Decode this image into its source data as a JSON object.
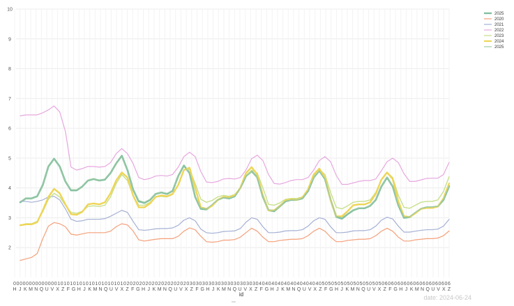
{
  "chart_data": {
    "type": "line",
    "xlabel": "id",
    "ylim": [
      1,
      10
    ],
    "y_ticks": [
      2,
      3,
      4,
      5,
      6,
      7,
      8,
      9,
      10
    ],
    "grid": true,
    "legend_position": "top-right",
    "x_tick_top": [
      "0",
      "0",
      "0",
      "0",
      "0",
      "0",
      "0",
      "0",
      "0",
      "0",
      "0",
      "0",
      "0",
      "0",
      "1",
      "0",
      "1",
      "0",
      "1",
      "0",
      "1",
      "0",
      "1",
      "0",
      "1",
      "0",
      "1",
      "0",
      "1",
      "0",
      "1",
      "0",
      "1",
      "0",
      "1",
      "0",
      "2",
      "0",
      "2",
      "0",
      "2",
      "0",
      "2",
      "0",
      "2",
      "0",
      "2",
      "0",
      "2",
      "0",
      "2",
      "0",
      "2",
      "0",
      "2",
      "0",
      "3",
      "0",
      "3",
      "0",
      "3",
      "0",
      "3",
      "0",
      "3",
      "0",
      "3",
      "0",
      "3",
      "0",
      "3",
      "0",
      "3",
      "0",
      "3",
      "0",
      "3",
      "0",
      "4",
      "0",
      "4",
      "0",
      "4",
      "0",
      "4",
      "0",
      "4",
      "0",
      "4",
      "0",
      "4",
      "0",
      "4",
      "0",
      "4",
      "0",
      "4",
      "0",
      "5",
      "0",
      "5",
      "0",
      "5",
      "0",
      "5",
      "0",
      "5",
      "0",
      "5",
      "0",
      "5",
      "0",
      "5",
      "0",
      "5",
      "0",
      "5",
      "0",
      "6",
      "0",
      "6",
      "0",
      "6",
      "0",
      "6",
      "0",
      "6",
      "0",
      "6",
      "0",
      "6",
      "0",
      "6",
      "0",
      "6",
      "0",
      "6",
      "0",
      "6"
    ],
    "x_tick_bottom": [
      "H",
      "J",
      "K",
      "M",
      "N",
      "Q",
      "U",
      "V",
      "X",
      "Z",
      "F",
      "G",
      "H",
      "J",
      "K",
      "M",
      "N",
      "Q",
      "U",
      "V",
      "X",
      "Z",
      "F",
      "G",
      "H",
      "J",
      "K",
      "M",
      "N",
      "Q",
      "U",
      "V",
      "X",
      "Z",
      "F",
      "G",
      "H",
      "J",
      "K",
      "M",
      "N",
      "Q",
      "U",
      "V",
      "X",
      "Z",
      "F",
      "G",
      "H",
      "J",
      "K",
      "M",
      "N",
      "Q",
      "U",
      "V",
      "X",
      "Z",
      "F",
      "G",
      "H",
      "J",
      "K",
      "M",
      "N",
      "Q",
      "U",
      "V",
      "X",
      "Z",
      "F",
      "G",
      "H",
      "J",
      "K",
      "M",
      "N",
      "Q",
      "U",
      "V",
      "X",
      "Z"
    ],
    "series": [
      {
        "name": "2025",
        "color": "#7fbf9f",
        "width": 2.6,
        "values": [
          3.52,
          3.65,
          3.65,
          3.72,
          4.1,
          4.72,
          4.98,
          4.72,
          4.22,
          3.92,
          3.92,
          4.05,
          4.25,
          4.3,
          4.25,
          4.28,
          4.5,
          4.82,
          5.08,
          4.6,
          3.95,
          3.55,
          3.5,
          3.6,
          3.8,
          3.85,
          3.8,
          3.9,
          4.4,
          4.75,
          4.5,
          3.7,
          3.3,
          3.28,
          3.42,
          3.6,
          3.68,
          3.65,
          3.72,
          4.0,
          4.4,
          4.56,
          4.36,
          3.7,
          3.25,
          3.22,
          3.38,
          3.55,
          3.6,
          3.6,
          3.65,
          3.9,
          4.35,
          4.58,
          4.3,
          3.6,
          3.03,
          2.97,
          3.12,
          3.25,
          3.32,
          3.32,
          3.4,
          3.6,
          4.05,
          4.35,
          4.05,
          3.42,
          3.0,
          3.02,
          3.16,
          3.3,
          3.35,
          3.35,
          3.38,
          3.6,
          4.06
        ]
      },
      {
        "name": "2020",
        "color": "#f4a07a",
        "width": 1.2,
        "values": [
          1.57,
          1.62,
          1.67,
          1.8,
          2.3,
          2.72,
          2.84,
          2.8,
          2.7,
          2.45,
          2.42,
          2.46,
          2.5,
          2.5,
          2.5,
          2.5,
          2.55,
          2.7,
          2.8,
          2.76,
          2.56,
          2.26,
          2.22,
          2.25,
          2.28,
          2.3,
          2.3,
          2.3,
          2.38,
          2.55,
          2.66,
          2.6,
          2.38,
          2.2,
          2.18,
          2.2,
          2.25,
          2.25,
          2.27,
          2.35,
          2.5,
          2.65,
          2.55,
          2.35,
          2.2,
          2.2,
          2.24,
          2.26,
          2.28,
          2.28,
          2.3,
          2.4,
          2.55,
          2.65,
          2.55,
          2.35,
          2.2,
          2.2,
          2.24,
          2.26,
          2.28,
          2.28,
          2.3,
          2.4,
          2.55,
          2.65,
          2.55,
          2.35,
          2.22,
          2.22,
          2.26,
          2.28,
          2.3,
          2.3,
          2.32,
          2.4,
          2.56
        ]
      },
      {
        "name": "2021",
        "color": "#a5b0d4",
        "width": 1.2,
        "values": [
          3.55,
          3.55,
          3.52,
          3.55,
          3.6,
          3.7,
          3.72,
          3.6,
          3.3,
          2.95,
          2.88,
          2.9,
          2.95,
          2.95,
          2.95,
          2.97,
          3.05,
          3.15,
          3.25,
          3.18,
          2.88,
          2.6,
          2.58,
          2.6,
          2.63,
          2.64,
          2.64,
          2.66,
          2.75,
          2.92,
          3.0,
          2.9,
          2.62,
          2.5,
          2.48,
          2.5,
          2.54,
          2.55,
          2.56,
          2.64,
          2.85,
          3.0,
          2.95,
          2.7,
          2.5,
          2.5,
          2.52,
          2.56,
          2.57,
          2.57,
          2.6,
          2.72,
          2.9,
          3.0,
          2.95,
          2.7,
          2.5,
          2.5,
          2.52,
          2.56,
          2.57,
          2.57,
          2.6,
          2.72,
          2.92,
          3.02,
          2.96,
          2.72,
          2.52,
          2.52,
          2.55,
          2.58,
          2.6,
          2.6,
          2.62,
          2.72,
          2.95
        ]
      },
      {
        "name": "2022",
        "color": "#e7a7df",
        "width": 1.2,
        "values": [
          6.42,
          6.45,
          6.45,
          6.45,
          6.52,
          6.62,
          6.75,
          6.55,
          5.9,
          4.7,
          4.6,
          4.65,
          4.72,
          4.72,
          4.7,
          4.72,
          4.85,
          5.15,
          5.32,
          5.15,
          4.82,
          4.35,
          4.28,
          4.32,
          4.4,
          4.42,
          4.4,
          4.45,
          4.7,
          5.05,
          5.2,
          5.05,
          4.55,
          4.2,
          4.18,
          4.22,
          4.3,
          4.32,
          4.3,
          4.35,
          4.6,
          4.98,
          5.1,
          4.92,
          4.45,
          4.15,
          4.13,
          4.18,
          4.25,
          4.28,
          4.28,
          4.35,
          4.6,
          4.92,
          5.05,
          4.88,
          4.42,
          4.12,
          4.12,
          4.17,
          4.22,
          4.25,
          4.25,
          4.3,
          4.58,
          4.88,
          5.0,
          4.85,
          4.48,
          4.22,
          4.22,
          4.27,
          4.32,
          4.33,
          4.33,
          4.45,
          4.86
        ]
      },
      {
        "name": "2023",
        "color": "#c8e08a",
        "width": 1.4,
        "values": [
          2.75,
          2.8,
          2.8,
          2.88,
          3.2,
          3.62,
          3.82,
          3.7,
          3.42,
          3.18,
          3.15,
          3.22,
          3.38,
          3.4,
          3.38,
          3.42,
          3.7,
          4.15,
          4.45,
          4.25,
          3.75,
          3.42,
          3.42,
          3.52,
          3.7,
          3.72,
          3.7,
          3.78,
          4.1,
          4.6,
          4.62,
          4.15,
          3.62,
          3.52,
          3.58,
          3.7,
          3.75,
          3.72,
          3.78,
          4.0,
          4.42,
          4.6,
          4.5,
          4.0,
          3.45,
          3.42,
          3.5,
          3.62,
          3.65,
          3.65,
          3.7,
          3.95,
          4.35,
          4.62,
          4.45,
          3.85,
          3.35,
          3.3,
          3.4,
          3.52,
          3.55,
          3.55,
          3.6,
          3.85,
          4.28,
          4.52,
          4.35,
          3.75,
          3.35,
          3.32,
          3.42,
          3.52,
          3.55,
          3.55,
          3.6,
          3.88,
          4.38
        ]
      },
      {
        "name": "2024",
        "color": "#eed556",
        "width": 2.4,
        "values": [
          2.75,
          2.78,
          2.78,
          2.85,
          3.25,
          3.7,
          3.97,
          3.82,
          3.45,
          3.12,
          3.1,
          3.2,
          3.45,
          3.48,
          3.45,
          3.52,
          3.82,
          4.25,
          4.52,
          4.35,
          3.75,
          3.35,
          3.35,
          3.48,
          3.7,
          3.75,
          3.72,
          3.8,
          4.1,
          4.6,
          4.68,
          4.0,
          3.35,
          3.3,
          3.4,
          3.6,
          3.7,
          3.68,
          3.75,
          4.0,
          4.5,
          4.7,
          4.45,
          3.75,
          3.25,
          3.25,
          3.4,
          3.58,
          3.62,
          3.6,
          3.68,
          3.95,
          4.45,
          4.65,
          4.35,
          3.6,
          3.05,
          3.05,
          3.22,
          3.42,
          3.45,
          3.45,
          3.52,
          3.8,
          4.28,
          4.52,
          4.3,
          3.55,
          3.05,
          3.03,
          3.15,
          3.3,
          3.33,
          3.33,
          3.38,
          3.65,
          4.15
        ]
      },
      {
        "name": "2025",
        "color": "#9cc9a4",
        "width": 1.2,
        "values": [
          3.54,
          3.65,
          3.65,
          3.72,
          4.1,
          4.7,
          4.96,
          4.7,
          4.22,
          3.94,
          3.94,
          4.05,
          4.26,
          4.3,
          4.25,
          4.3,
          4.5,
          4.8,
          5.05,
          4.6,
          3.96,
          3.58,
          3.52,
          3.62,
          3.8,
          3.86,
          3.82,
          3.9,
          4.4,
          4.72,
          4.5,
          3.72,
          3.32,
          3.3,
          3.44,
          3.6,
          3.68,
          3.66,
          3.72,
          4.0,
          4.4,
          4.55,
          4.36,
          3.72,
          3.27,
          3.24,
          3.4,
          3.56,
          3.6,
          3.6,
          3.66,
          3.9,
          4.36,
          4.57,
          4.3,
          3.62,
          3.05,
          3.0,
          3.14,
          3.27,
          3.33,
          3.33,
          3.4,
          3.62,
          4.05,
          4.35,
          4.05,
          3.44,
          3.02,
          3.04,
          3.18,
          3.3,
          3.36,
          3.36,
          3.38,
          3.62,
          4.07
        ]
      }
    ],
    "footer_text": "date: 2024-06-24"
  }
}
